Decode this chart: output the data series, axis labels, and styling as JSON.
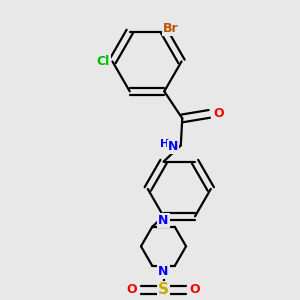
{
  "background_color": "#e8e8e8",
  "atom_colors": {
    "C": "#000000",
    "H": "#000000",
    "N": "#0000ff",
    "O": "#ff0000",
    "S": "#ccaa00",
    "Cl": "#00bb00",
    "Br": "#bb5500"
  },
  "bond_color": "#000000",
  "bond_width": 1.6,
  "font_size": 9.0,
  "fig_size": [
    3.0,
    3.0
  ],
  "dpi": 100
}
